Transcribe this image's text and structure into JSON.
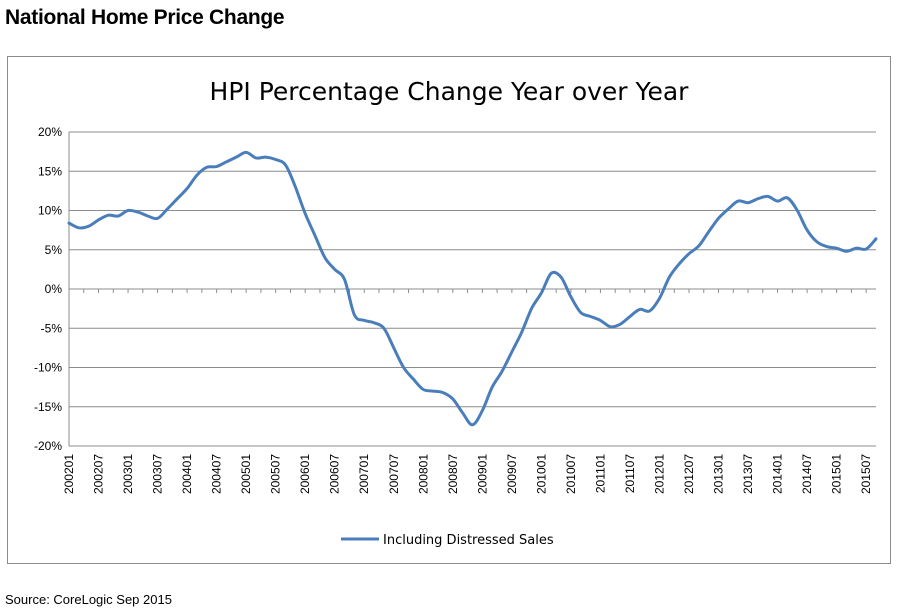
{
  "page": {
    "title": "National Home Price Change",
    "source": "Source: CoreLogic Sep 2015"
  },
  "chart_data": {
    "type": "line",
    "title": "HPI Percentage Change Year over Year",
    "xlabel": "",
    "ylabel": "",
    "ylim": [
      -20,
      20
    ],
    "yticks": [
      -20,
      -15,
      -10,
      -5,
      0,
      5,
      10,
      15,
      20
    ],
    "ytick_labels": [
      "-20%",
      "-15%",
      "-10%",
      "-5%",
      "0%",
      "5%",
      "10%",
      "15%",
      "20%"
    ],
    "x_tick_labels": [
      "200201",
      "200207",
      "200301",
      "200307",
      "200401",
      "200407",
      "200501",
      "200507",
      "200601",
      "200607",
      "200701",
      "200707",
      "200801",
      "200807",
      "200901",
      "200907",
      "201001",
      "201007",
      "201101",
      "201107",
      "201201",
      "201207",
      "201301",
      "201307",
      "201401",
      "201407",
      "201501",
      "201507"
    ],
    "grid": true,
    "legend_position": "bottom",
    "line_color": "#4a7ebb",
    "series": [
      {
        "name": "Including Distressed Sales",
        "x": [
          "200201",
          "200203",
          "200205",
          "200207",
          "200209",
          "200211",
          "200301",
          "200303",
          "200305",
          "200307",
          "200309",
          "200311",
          "200401",
          "200403",
          "200405",
          "200407",
          "200409",
          "200411",
          "200501",
          "200503",
          "200505",
          "200507",
          "200509",
          "200511",
          "200601",
          "200603",
          "200605",
          "200607",
          "200609",
          "200611",
          "200701",
          "200703",
          "200705",
          "200707",
          "200709",
          "200711",
          "200801",
          "200803",
          "200805",
          "200807",
          "200809",
          "200811",
          "200901",
          "200903",
          "200905",
          "200907",
          "200909",
          "200911",
          "201001",
          "201003",
          "201005",
          "201007",
          "201009",
          "201011",
          "201101",
          "201103",
          "201105",
          "201107",
          "201109",
          "201111",
          "201201",
          "201203",
          "201205",
          "201207",
          "201209",
          "201211",
          "201301",
          "201303",
          "201305",
          "201307",
          "201309",
          "201311",
          "201401",
          "201403",
          "201405",
          "201407",
          "201409",
          "201411",
          "201501",
          "201503",
          "201505",
          "201507",
          "201509"
        ],
        "values": [
          8.4,
          7.8,
          8.0,
          8.8,
          9.4,
          9.3,
          10.0,
          9.8,
          9.3,
          9.0,
          10.2,
          11.5,
          12.8,
          14.5,
          15.5,
          15.6,
          16.2,
          16.8,
          17.4,
          16.7,
          16.8,
          16.5,
          15.8,
          13.0,
          9.6,
          6.8,
          4.0,
          2.5,
          1.2,
          -3.3,
          -4.0,
          -4.3,
          -5.0,
          -7.5,
          -10.0,
          -11.5,
          -12.8,
          -13.0,
          -13.2,
          -14.0,
          -15.8,
          -17.3,
          -15.5,
          -12.5,
          -10.5,
          -8.0,
          -5.5,
          -2.5,
          -0.5,
          2.0,
          1.5,
          -1.0,
          -3.0,
          -3.5,
          -4.0,
          -4.8,
          -4.5,
          -3.5,
          -2.6,
          -2.8,
          -1.2,
          1.5,
          3.2,
          4.5,
          5.5,
          7.3,
          9.0,
          10.2,
          11.2,
          11.0,
          11.5,
          11.8,
          11.2,
          11.6,
          10.0,
          7.5,
          6.0,
          5.4,
          5.2,
          4.8,
          5.2,
          5.1,
          6.4
        ]
      }
    ]
  }
}
